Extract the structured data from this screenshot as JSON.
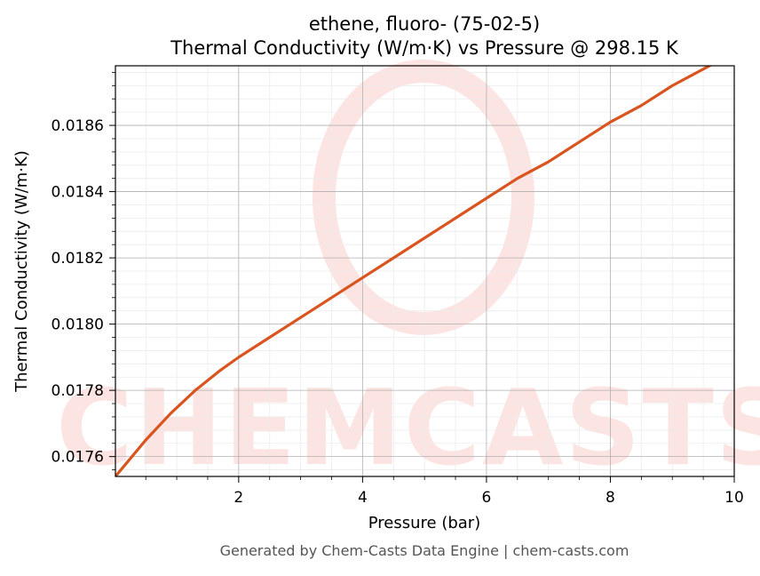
{
  "chart_data": {
    "type": "line",
    "title_line1": "ethene, fluoro- (75-02-5)",
    "title_line2": "Thermal Conductivity (W/m·K) vs Pressure @ 298.15 K",
    "xlabel": "Pressure (bar)",
    "ylabel": "Thermal Conductivity (W/m·K)",
    "xlim": [
      0.01,
      10
    ],
    "ylim": [
      0.01754,
      0.01878
    ],
    "xticks": [
      2,
      4,
      6,
      8,
      10
    ],
    "xtick_labels": [
      "2",
      "4",
      "6",
      "8",
      "10"
    ],
    "yticks": [
      0.0176,
      0.0178,
      0.018,
      0.0182,
      0.0184,
      0.0186
    ],
    "ytick_labels": [
      "0.0176",
      "0.0178",
      "0.0180",
      "0.0182",
      "0.0184",
      "0.0186"
    ],
    "grid": true,
    "series": [
      {
        "color": "#d9541e",
        "x": [
          0.01,
          0.5,
          0.9,
          1.3,
          1.7,
          2.0,
          2.5,
          3.0,
          3.5,
          4.0,
          4.5,
          5.0,
          5.5,
          6.0,
          6.5,
          7.0,
          7.5,
          8.0,
          8.5,
          9.0,
          9.5,
          10.0
        ],
        "y": [
          0.01754,
          0.01765,
          0.01773,
          0.0178,
          0.01786,
          0.0179,
          0.01796,
          0.01802,
          0.01808,
          0.01814,
          0.0182,
          0.01826,
          0.01832,
          0.01838,
          0.01844,
          0.01849,
          0.01855,
          0.01861,
          0.01866,
          0.01872,
          0.01877,
          0.01882
        ]
      }
    ],
    "footer": "Generated by Chem-Casts Data Engine | chem-casts.com",
    "watermark": "CHEMCASTS"
  }
}
